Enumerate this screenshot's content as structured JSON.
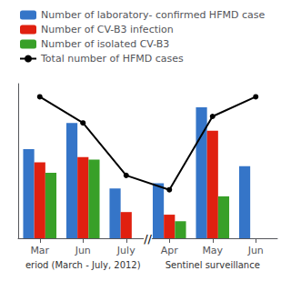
{
  "chart_data": {
    "type": "bar",
    "categories": [
      "Mar",
      "Jun",
      "July",
      "Apr",
      "May",
      "Jun"
    ],
    "series": [
      {
        "name": "Number of laboratory- confirmed HFMD case",
        "color": "#3575c8",
        "values": [
          0.68,
          0.88,
          0.38,
          0.42,
          1.0,
          0.55
        ]
      },
      {
        "name": "Number of CV-B3 infection",
        "color": "#e02010",
        "values": [
          0.58,
          0.62,
          0.2,
          0.18,
          0.82,
          0.0
        ]
      },
      {
        "name": "Number of isolated CV-B3",
        "color": "#38a028",
        "values": [
          0.5,
          0.6,
          0.0,
          0.13,
          0.32,
          0.0
        ]
      },
      {
        "name": "Total number of HFMD cases",
        "type": "line",
        "color": "#000000",
        "marker": "circle",
        "line_style": "solid",
        "values": [
          1.08,
          0.88,
          0.48,
          0.37,
          0.93,
          1.08
        ]
      }
    ],
    "annotations": [
      "//",
      "eriod (March - July, 2012)",
      "Sentinel surveillance"
    ],
    "ylim": [
      0,
      1.18
    ],
    "tick_labels": "x",
    "grid": false,
    "legend": "upper left"
  }
}
